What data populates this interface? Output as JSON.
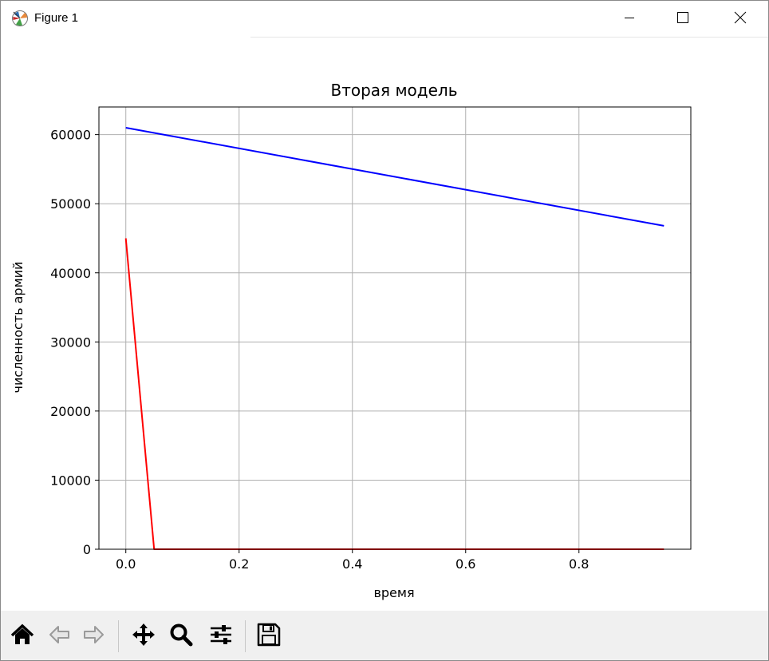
{
  "window": {
    "title": "Figure 1",
    "icons": {
      "app": "matplotlib-icon",
      "minimize": "minimize-icon",
      "maximize": "maximize-icon",
      "close": "close-icon"
    }
  },
  "toolbar": {
    "buttons": [
      {
        "name": "home",
        "icon": "home-icon"
      },
      {
        "name": "back",
        "icon": "arrow-left-icon"
      },
      {
        "name": "forward",
        "icon": "arrow-right-icon"
      },
      {
        "name": "pan",
        "icon": "move-icon"
      },
      {
        "name": "zoom",
        "icon": "magnifier-icon"
      },
      {
        "name": "configure-subplots",
        "icon": "sliders-icon"
      },
      {
        "name": "save",
        "icon": "floppy-disk-icon"
      }
    ]
  },
  "chart_data": {
    "type": "line",
    "title": "Вторая модель",
    "xlabel": "время",
    "ylabel": "численность армий",
    "xlim": [
      -0.0475,
      0.9975
    ],
    "ylim": [
      0,
      64000
    ],
    "xticks": [
      0.0,
      0.2,
      0.4,
      0.6,
      0.8
    ],
    "xtick_labels": [
      "0.0",
      "0.2",
      "0.4",
      "0.6",
      "0.8"
    ],
    "yticks": [
      0,
      10000,
      20000,
      30000,
      40000,
      50000,
      60000
    ],
    "ytick_labels": [
      "0",
      "10000",
      "20000",
      "30000",
      "40000",
      "50000",
      "60000"
    ],
    "grid": true,
    "series": [
      {
        "color": "#0000ff",
        "x": [
          0.0,
          0.95
        ],
        "y": [
          61000,
          46800
        ]
      },
      {
        "color": "#ff0000",
        "x": [
          0.0,
          0.05,
          0.95
        ],
        "y": [
          45000,
          0,
          0
        ]
      }
    ]
  }
}
